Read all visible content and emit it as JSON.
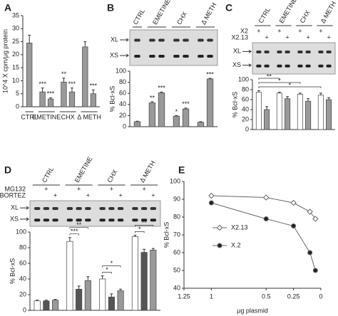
{
  "chart_data": [
    {
      "type": "bar",
      "panel": "A",
      "ylabel": "10^4 X cpm/μg protein",
      "ylim": [
        0,
        35
      ],
      "yticks": [
        0,
        5,
        10,
        15,
        20,
        25,
        30,
        35
      ],
      "colors": [
        "#999999",
        "#999999"
      ],
      "groups": [
        {
          "label": "CTRL",
          "values": [
            24.5
          ],
          "errors": [
            3
          ],
          "stars": [
            null
          ]
        },
        {
          "label": "EMETINE",
          "values": [
            5.7,
            3
          ],
          "errors": [
            1.5,
            0.5
          ],
          "stars": [
            "***",
            "***"
          ]
        },
        {
          "label": "CHX",
          "values": [
            9.5,
            5.7
          ],
          "errors": [
            1.5,
            1.5
          ],
          "stars": [
            "**",
            "***"
          ]
        },
        {
          "label": "Δ METH",
          "values": [
            23,
            5
          ],
          "errors": [
            2,
            1.5
          ],
          "stars": [
            null,
            "***"
          ]
        }
      ]
    },
    {
      "type": "bar",
      "panel": "B",
      "ylabel": "% Bcl-xS",
      "ylim": [
        0,
        100
      ],
      "yticks": [
        0,
        20,
        40,
        60,
        80,
        100
      ],
      "colors": [
        "#999999",
        "#999999"
      ],
      "gel_labels": [
        "XL",
        "XS"
      ],
      "groups": [
        {
          "label": "CTRL",
          "values": [
            9
          ],
          "errors": [
            1
          ],
          "stars": [
            null
          ]
        },
        {
          "label": "EMETINE",
          "values": [
            43,
            61
          ],
          "errors": [
            2,
            1.5
          ],
          "stars": [
            "**",
            "***"
          ]
        },
        {
          "label": "CHX",
          "values": [
            19,
            32
          ],
          "errors": [
            1,
            1.5
          ],
          "stars": [
            "*",
            "***"
          ]
        },
        {
          "label": "Δ METH",
          "values": [
            8,
            86
          ],
          "errors": [
            1,
            1
          ],
          "stars": [
            null,
            "***"
          ]
        }
      ]
    },
    {
      "type": "bar",
      "panel": "C",
      "ylabel": "% Bcl-xS",
      "ylim": [
        0,
        100
      ],
      "yticks": [
        0,
        20,
        40,
        60,
        80,
        100
      ],
      "colors": [
        "#ffffff",
        "#999999"
      ],
      "gel_labels": [
        "XL",
        "XS"
      ],
      "treatments": [
        {
          "label": "X2",
          "marks": [
            "+",
            null
          ]
        },
        {
          "label": "X2.13",
          "marks": [
            null,
            "+"
          ]
        }
      ],
      "groups": [
        {
          "label": "CTRL",
          "values": [
            75,
            40
          ],
          "errors": [
            3,
            6
          ]
        },
        {
          "label": "EMETINE",
          "values": [
            73,
            62
          ],
          "errors": [
            2,
            4
          ],
          "bracket": "**"
        },
        {
          "label": "CHX",
          "values": [
            71,
            57
          ],
          "errors": [
            2,
            5
          ],
          "bracket": "*"
        },
        {
          "label": "Δ METH",
          "values": [
            69,
            60
          ],
          "errors": [
            4,
            4
          ],
          "bracket": "*"
        }
      ]
    },
    {
      "type": "bar",
      "panel": "D",
      "ylabel": "% Bcl-xS",
      "ylim": [
        0,
        100
      ],
      "yticks": [
        0,
        20,
        40,
        60,
        80,
        100
      ],
      "colors": [
        "#ffffff",
        "#555555",
        "#999999"
      ],
      "gel_labels": [
        "XL",
        "XS"
      ],
      "treatments": [
        {
          "label": "MG132",
          "marks": [
            null,
            "+",
            null
          ]
        },
        {
          "label": "BORTEZ",
          "marks": [
            null,
            null,
            "+"
          ]
        }
      ],
      "groups": [
        {
          "label": "CTRL",
          "values": [
            12,
            12,
            13
          ],
          "errors": [
            1,
            1,
            1
          ]
        },
        {
          "label": "EMETINE",
          "values": [
            88,
            27,
            38
          ],
          "errors": [
            5,
            4,
            5
          ],
          "brackets": [
            "***",
            "**"
          ]
        },
        {
          "label": "CHX",
          "values": [
            40,
            17,
            25
          ],
          "errors": [
            4,
            4,
            2
          ],
          "brackets": [
            "*",
            "*"
          ]
        },
        {
          "label": "Δ METH",
          "values": [
            94,
            74,
            77
          ],
          "errors": [
            2,
            4,
            2
          ],
          "brackets": [
            "*",
            "**"
          ]
        }
      ]
    },
    {
      "type": "line",
      "panel": "E",
      "ylabel": "% Bcl-xS",
      "xlabel": "μg plasmid",
      "xlim": [
        1.25,
        0
      ],
      "xticks": [
        1.25,
        1,
        0.5,
        0.25,
        0
      ],
      "ylim": [
        40,
        100
      ],
      "yticks": [
        40,
        50,
        60,
        70,
        80,
        90,
        100
      ],
      "x": [
        1,
        0.5,
        0.25,
        0.1,
        0.05
      ],
      "series": [
        {
          "name": "X2.13",
          "color": "#666666",
          "marker": "diamond",
          "values": [
            92,
            91,
            88,
            83,
            79
          ]
        },
        {
          "name": "X.2",
          "color": "#666666",
          "marker": "circle",
          "values": [
            88,
            79,
            75,
            60,
            50
          ]
        }
      ]
    }
  ]
}
